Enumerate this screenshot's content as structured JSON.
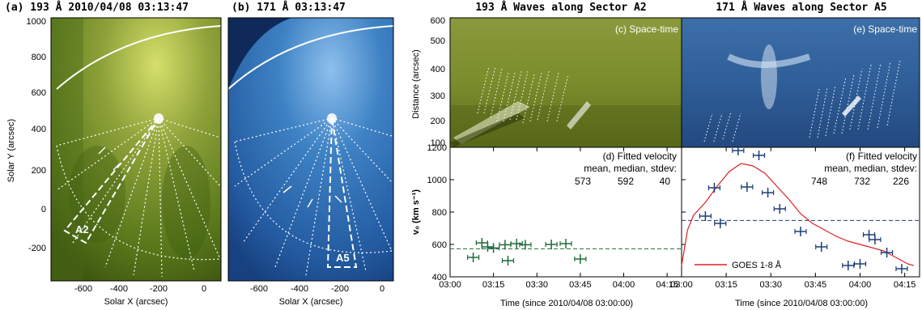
{
  "panel_a": {
    "title": "(a) 193 Å 2010/04/08 03:13:47",
    "xlabel": "Solar X (arcsec)",
    "ylabel": "Solar Y (arcsec)",
    "sector_label": "A2",
    "xticks": [
      "-600",
      "-400",
      "-200",
      "0"
    ],
    "yticks": [
      "1000",
      "800",
      "600",
      "400",
      "200",
      "0",
      "-200"
    ]
  },
  "panel_b": {
    "title": "(b) 171 Å 03:13:47",
    "xlabel": "Solar X (arcsec)",
    "sector_label": "A5",
    "xticks": [
      "-600",
      "-400",
      "-200",
      "0"
    ]
  },
  "panel_c": {
    "header": "193 Å Waves along Sector A2",
    "label": "(c) Space-time",
    "ylabel": "Distance (arcsec)",
    "yticks": [
      "600",
      "500",
      "400",
      "300",
      "200",
      "100"
    ]
  },
  "panel_e": {
    "header": "171 Å Waves along Sector A5",
    "label": "(e) Space-time"
  },
  "panel_d": {
    "label": "(d) Fitted velocity",
    "stats_header": "mean, median, stdev:",
    "stats_values": [
      "573",
      "592",
      "40"
    ],
    "xlabel": "Time (since 2010/04/08 03:00:00)"
  },
  "panel_f": {
    "label": "(f) Fitted velocity",
    "stats_header": "mean, median, stdev:",
    "stats_values": [
      "748",
      "732",
      "226"
    ],
    "xlabel": "Time (since 2010/04/08 03:00:00)",
    "legend": "GOES 1-8 Å"
  },
  "velocity_ylabel": "v₀ (km s⁻¹)",
  "colors": {
    "aia193": "#6f8a1e",
    "aia171": "#2c62a6",
    "green_points": "#1e6b3a",
    "blue_points": "#1b3f78",
    "goes": "#dd2222"
  },
  "chart_data": [
    {
      "type": "scatter",
      "panel": "d",
      "ylim": [
        400,
        1200
      ],
      "x_ticks": [
        "03:00",
        "03:15",
        "03:30",
        "03:45",
        "04:00",
        "04:15"
      ],
      "y_ticks": [
        "1200",
        "1000",
        "800",
        "600",
        "400"
      ],
      "mean_line": 573,
      "points": [
        {
          "t": "03:08",
          "v": 520
        },
        {
          "t": "03:11",
          "v": 610
        },
        {
          "t": "03:13",
          "v": 585
        },
        {
          "t": "03:15",
          "v": 578
        },
        {
          "t": "03:19",
          "v": 598
        },
        {
          "t": "03:20",
          "v": 500
        },
        {
          "t": "03:23",
          "v": 605
        },
        {
          "t": "03:26",
          "v": 598
        },
        {
          "t": "03:35",
          "v": 600
        },
        {
          "t": "03:40",
          "v": 605
        },
        {
          "t": "03:45",
          "v": 510
        }
      ]
    },
    {
      "type": "scatter",
      "panel": "f",
      "ylim": [
        400,
        1200
      ],
      "x_ticks": [
        "03:00",
        "03:15",
        "03:30",
        "03:45",
        "04:00",
        "04:15"
      ],
      "y_ticks": [
        "1200",
        "1000",
        "800",
        "600",
        "400"
      ],
      "mean_line": 748,
      "points": [
        {
          "t": "03:08",
          "v": 775
        },
        {
          "t": "03:11",
          "v": 950
        },
        {
          "t": "03:13",
          "v": 730
        },
        {
          "t": "03:19",
          "v": 1180
        },
        {
          "t": "03:22",
          "v": 955
        },
        {
          "t": "03:26",
          "v": 1150
        },
        {
          "t": "03:29",
          "v": 920
        },
        {
          "t": "03:33",
          "v": 820
        },
        {
          "t": "03:40",
          "v": 680
        },
        {
          "t": "03:47",
          "v": 585
        },
        {
          "t": "03:56",
          "v": 470
        },
        {
          "t": "04:00",
          "v": 480
        },
        {
          "t": "04:03",
          "v": 660
        },
        {
          "t": "04:05",
          "v": 630
        },
        {
          "t": "04:09",
          "v": 550
        },
        {
          "t": "04:14",
          "v": 450
        }
      ],
      "series_name": "GOES 1-8 Å",
      "goes_curve": [
        {
          "t": "03:00",
          "v": 470
        },
        {
          "t": "03:02",
          "v": 690
        },
        {
          "t": "03:04",
          "v": 780
        },
        {
          "t": "03:08",
          "v": 860
        },
        {
          "t": "03:12",
          "v": 960
        },
        {
          "t": "03:16",
          "v": 1050
        },
        {
          "t": "03:20",
          "v": 1100
        },
        {
          "t": "03:24",
          "v": 1085
        },
        {
          "t": "03:28",
          "v": 1040
        },
        {
          "t": "03:32",
          "v": 960
        },
        {
          "t": "03:36",
          "v": 880
        },
        {
          "t": "03:40",
          "v": 790
        },
        {
          "t": "03:44",
          "v": 730
        },
        {
          "t": "03:48",
          "v": 690
        },
        {
          "t": "03:52",
          "v": 650
        },
        {
          "t": "03:56",
          "v": 620
        },
        {
          "t": "04:00",
          "v": 600
        },
        {
          "t": "04:04",
          "v": 580
        },
        {
          "t": "04:08",
          "v": 560
        },
        {
          "t": "04:12",
          "v": 520
        },
        {
          "t": "04:16",
          "v": 480
        },
        {
          "t": "04:18",
          "v": 470
        }
      ]
    }
  ]
}
